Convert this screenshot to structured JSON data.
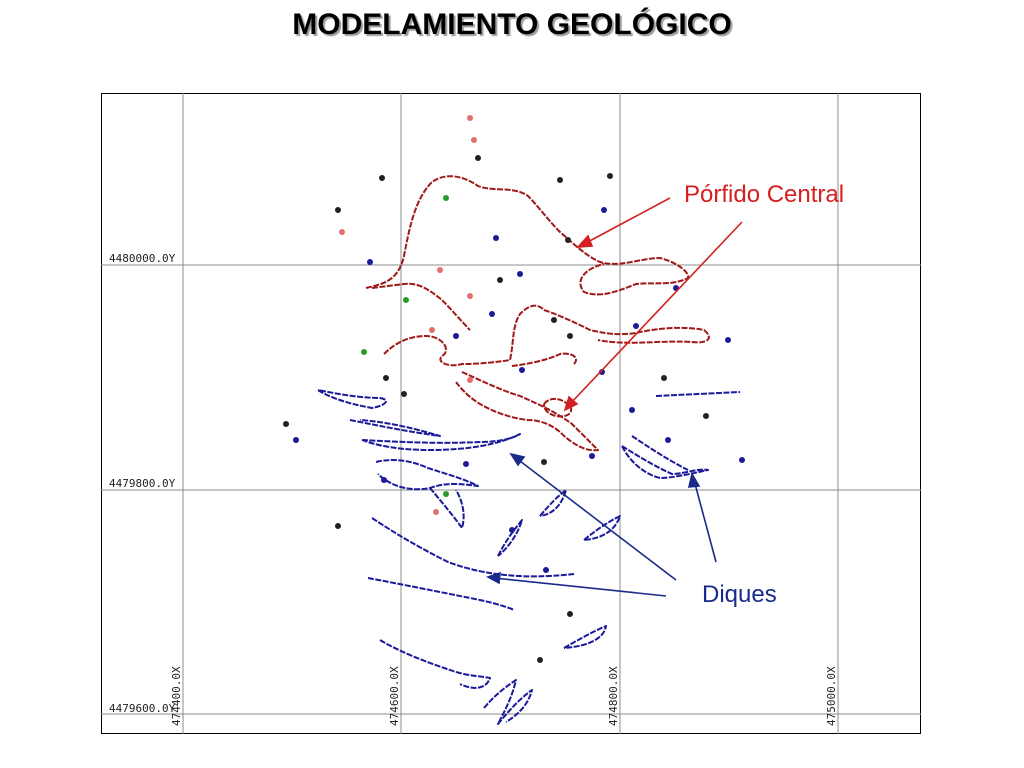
{
  "slide": {
    "title": "MODELAMIENTO GEOLÓGICO"
  },
  "map": {
    "grid_labels": {
      "north": [
        "4480000.0Y",
        "4479800.0Y",
        "4479600.0Y"
      ],
      "east": [
        "474400.0X",
        "474600.0X",
        "474800.0X",
        "475000.0X"
      ]
    },
    "annotations": {
      "porphyry": "Pórfido Central",
      "dikes": "Diques"
    },
    "colors": {
      "porphyry": "#a01818",
      "dikes": "#1a1a9a",
      "callout_porphyry": "#d42020",
      "callout_dikes": "#1a2a8a",
      "grid": "#8c8c8c"
    }
  }
}
